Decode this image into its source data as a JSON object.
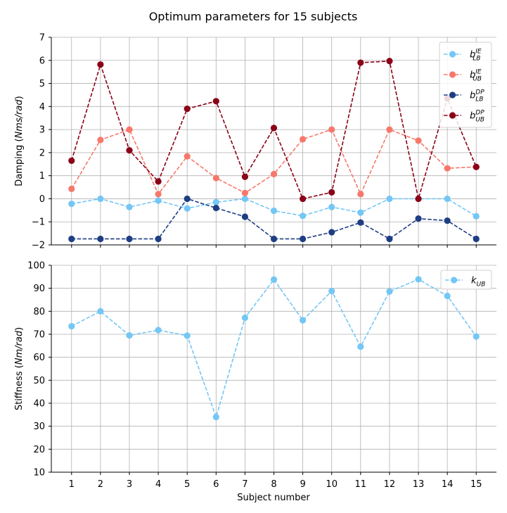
{
  "figure": {
    "title": "Optimum parameters for 15 subjects",
    "xlabel": "Subject number"
  },
  "chart_data": [
    {
      "type": "line",
      "ylabel": {
        "main": "Damping (",
        "italic": "Nms/rad",
        "close": ")"
      },
      "x": [
        1,
        2,
        3,
        4,
        5,
        6,
        7,
        8,
        9,
        10,
        11,
        12,
        13,
        14,
        15
      ],
      "xlim": [
        0.3,
        15.7
      ],
      "ylim": [
        -2,
        7
      ],
      "yticks": [
        -2,
        -1,
        0,
        1,
        2,
        3,
        4,
        5,
        6,
        7
      ],
      "ytick_labels": [
        "−2",
        "−1",
        "0",
        "1",
        "2",
        "3",
        "4",
        "5",
        "6",
        "7"
      ],
      "grid": true,
      "legend_position": "top-right",
      "series": [
        {
          "name": "b",
          "sub": "LB",
          "sup": "IE",
          "color": "#74c7f5",
          "values": [
            -0.22,
            0.0,
            -0.36,
            -0.08,
            -0.42,
            -0.15,
            0.0,
            -0.52,
            -0.74,
            -0.36,
            -0.6,
            0.0,
            0.0,
            0.0,
            -0.76
          ]
        },
        {
          "name": "b",
          "sub": "UB",
          "sup": "IE",
          "color": "#f7786b",
          "values": [
            0.43,
            2.55,
            3.0,
            0.2,
            1.84,
            0.9,
            0.25,
            1.07,
            2.58,
            3.0,
            0.2,
            3.0,
            2.52,
            1.32,
            1.38
          ]
        },
        {
          "name": "b",
          "sub": "LB",
          "sup": "DP",
          "color": "#1e3e84",
          "values": [
            -1.74,
            -1.74,
            -1.74,
            -1.74,
            0.0,
            -0.4,
            -0.78,
            -1.74,
            -1.74,
            -1.45,
            -1.03,
            -1.74,
            -0.86,
            -0.95,
            -1.74
          ]
        },
        {
          "name": "b",
          "sub": "UB",
          "sup": "DP",
          "color": "#8b0017",
          "values": [
            1.65,
            5.82,
            2.1,
            0.75,
            3.9,
            4.23,
            0.95,
            3.07,
            0.0,
            0.28,
            5.9,
            5.97,
            0.0,
            4.35,
            1.38
          ]
        }
      ]
    },
    {
      "type": "line",
      "ylabel": {
        "main": "Stiffness (",
        "italic": "Nm/rad",
        "close": ")"
      },
      "x": [
        1,
        2,
        3,
        4,
        5,
        6,
        7,
        8,
        9,
        10,
        11,
        12,
        13,
        14,
        15
      ],
      "xlim": [
        0.3,
        15.7
      ],
      "ylim": [
        10,
        100
      ],
      "yticks": [
        10,
        20,
        30,
        40,
        50,
        60,
        70,
        80,
        90,
        100
      ],
      "ytick_labels": [
        "10",
        "20",
        "30",
        "40",
        "50",
        "60",
        "70",
        "80",
        "90",
        "100"
      ],
      "grid": true,
      "legend_position": "top-right",
      "series": [
        {
          "name": "k",
          "sub": "UB",
          "sup": "",
          "color": "#74c7f5",
          "values": [
            73.5,
            80.0,
            69.5,
            71.8,
            69.4,
            34.0,
            77.2,
            93.8,
            76.1,
            88.8,
            64.6,
            88.6,
            93.9,
            86.7,
            69.0
          ]
        }
      ]
    }
  ]
}
